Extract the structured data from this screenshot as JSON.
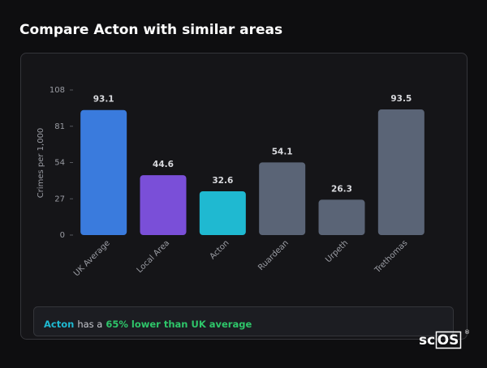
{
  "chart_data": {
    "type": "bar",
    "title": "Compare Acton with similar areas",
    "y_label": "Crimes per 1,000",
    "categories": [
      "UK Average",
      "Local Area",
      "Acton",
      "Ruardean",
      "Urpeth",
      "Trethomas"
    ],
    "values": [
      93.1,
      44.6,
      32.6,
      54.1,
      26.3,
      93.5
    ],
    "colors": [
      "#3a7bdd",
      "#7a4fd8",
      "#1fb9d1",
      "#5a6476",
      "#5a6476",
      "#5a6476"
    ],
    "ylim": [
      0,
      108
    ],
    "yticks": [
      0,
      27,
      54,
      81,
      108
    ],
    "grid": false
  },
  "note": {
    "area": "Acton",
    "text": "has a",
    "highlight": "65% lower than UK average"
  },
  "logo": {
    "prefix": "sc",
    "box": "OS",
    "mark": "®"
  }
}
